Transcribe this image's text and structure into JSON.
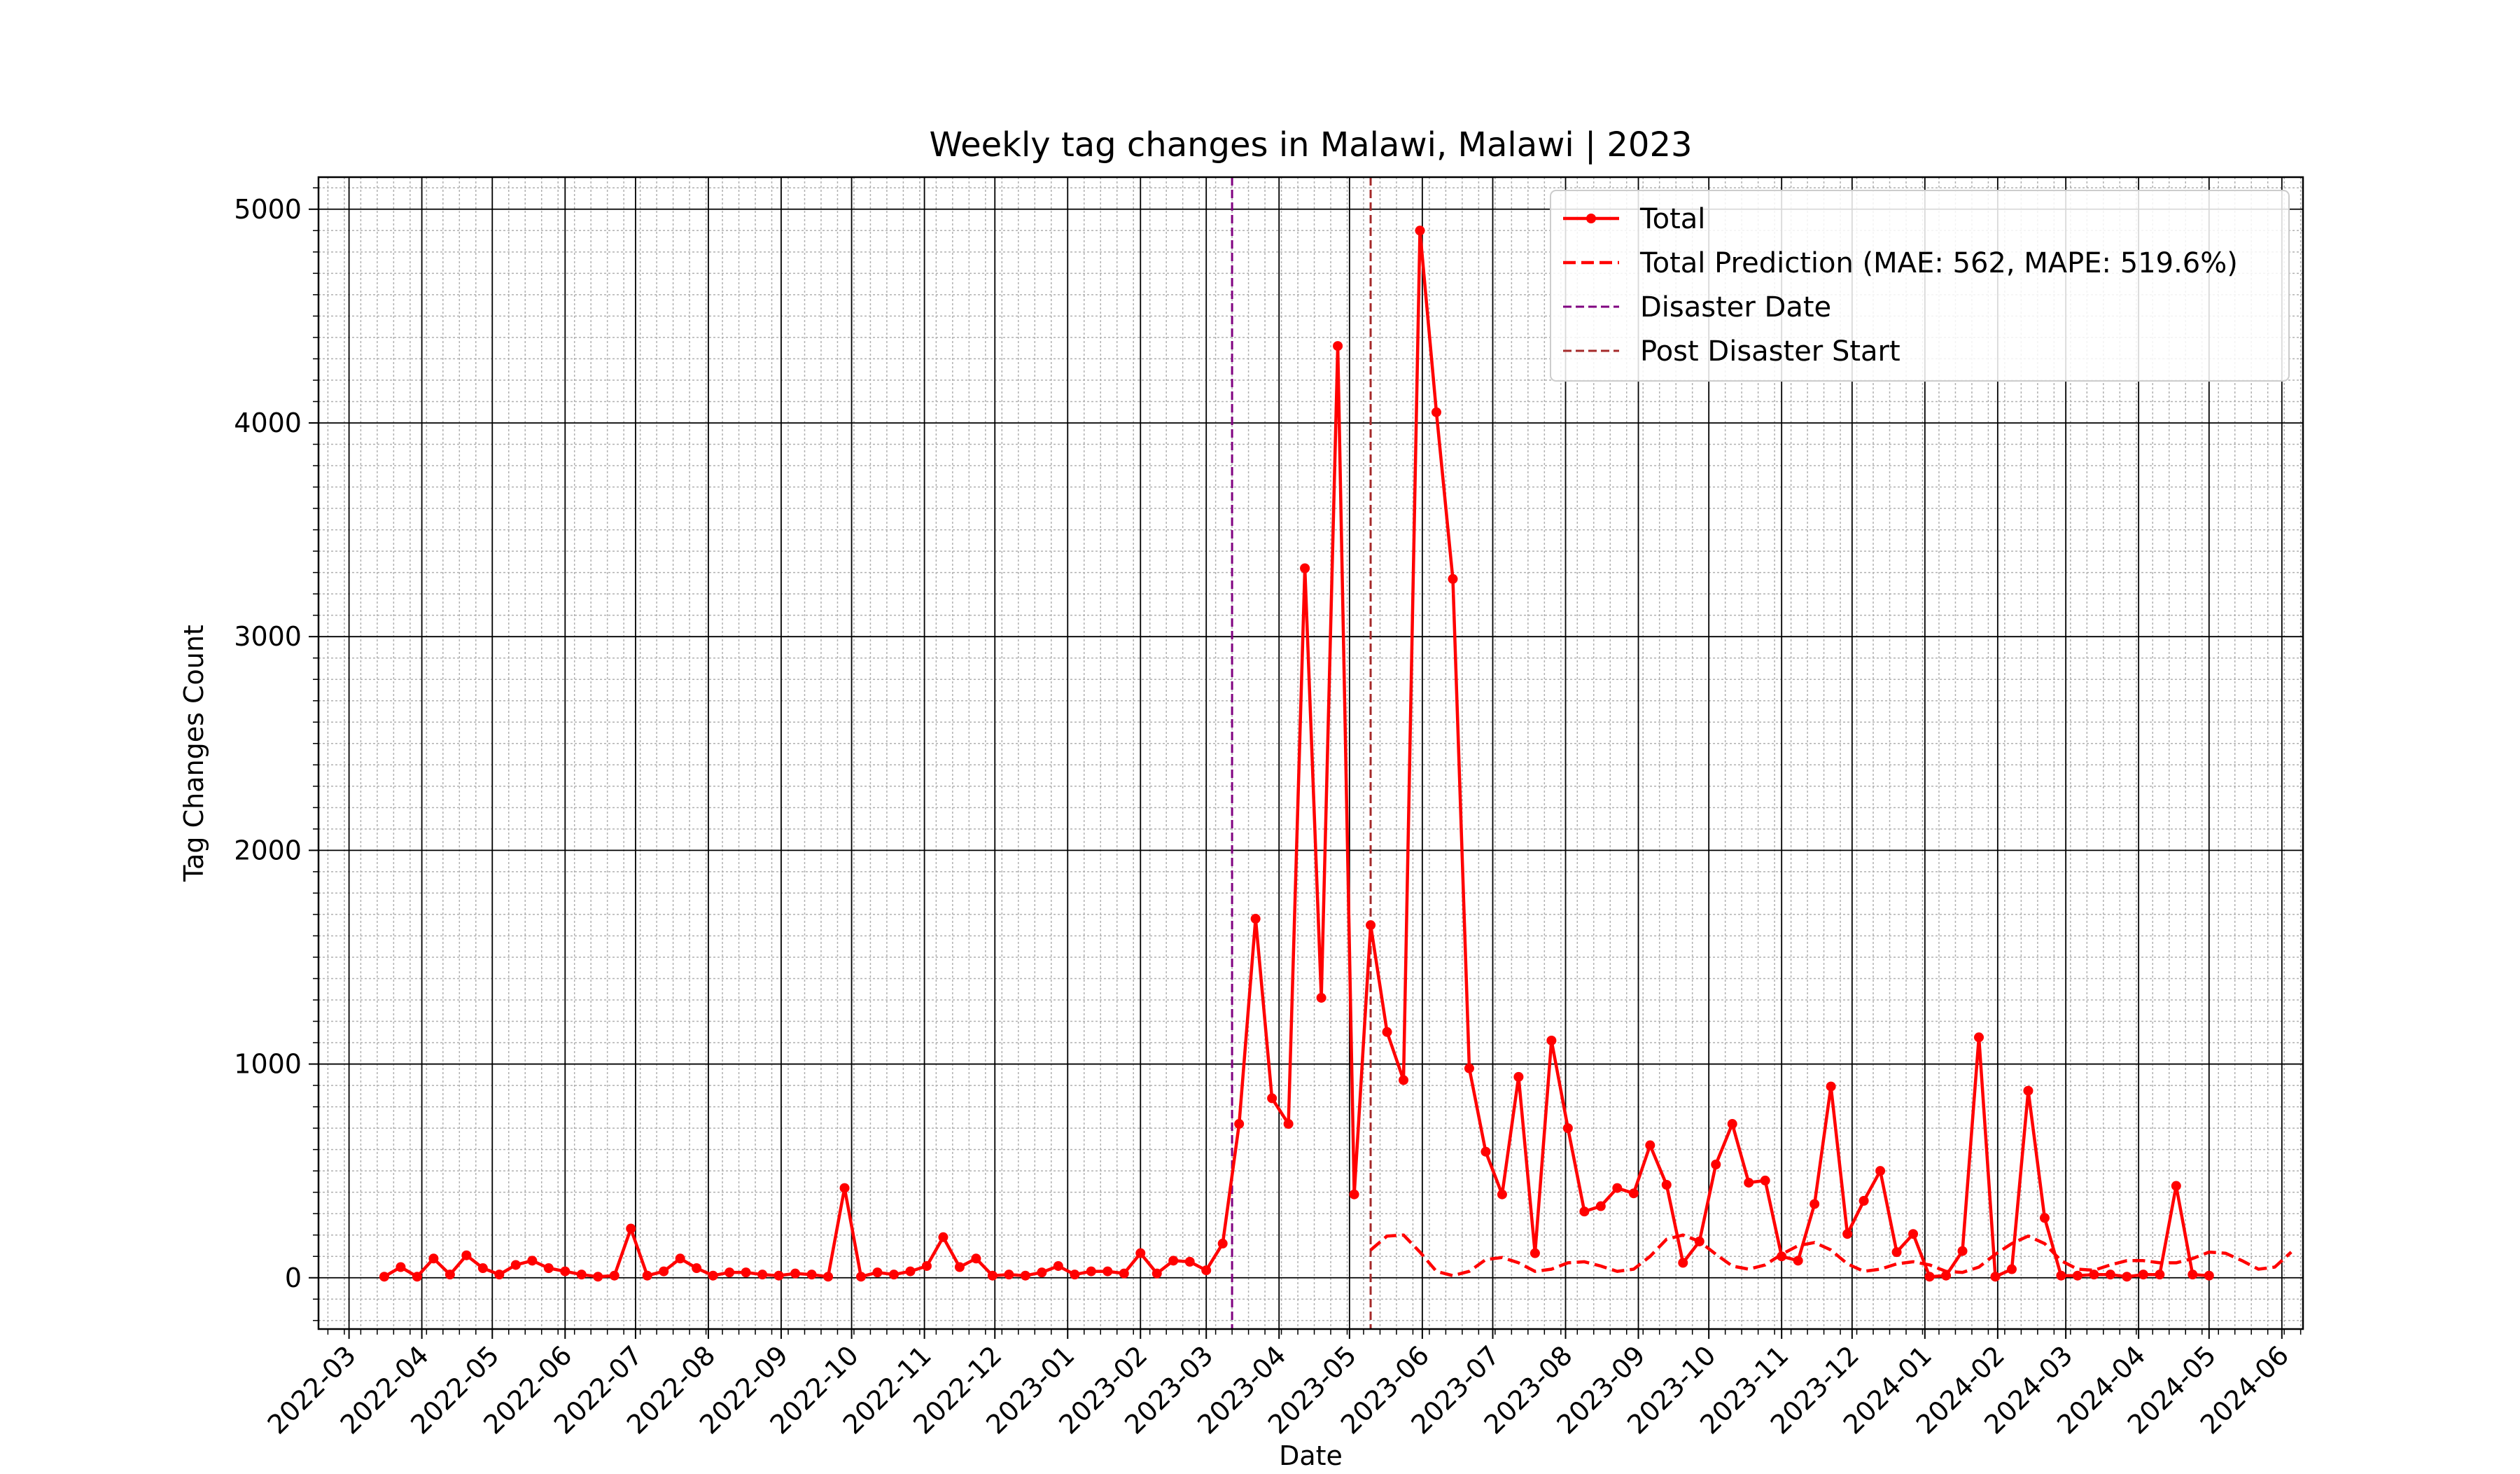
{
  "chart_data": {
    "type": "line",
    "title": "Weekly tag changes in Malawi, Malawi | 2023",
    "xlabel": "Date",
    "ylabel": "Tag Changes Count",
    "ylim": [
      -240,
      5150
    ],
    "xlim": [
      "2022-02-16",
      "2024-06-10"
    ],
    "y_ticks": [
      0,
      1000,
      2000,
      3000,
      4000,
      5000
    ],
    "x_ticks": [
      "2022-03",
      "2022-04",
      "2022-05",
      "2022-06",
      "2022-07",
      "2022-08",
      "2022-09",
      "2022-10",
      "2022-11",
      "2022-12",
      "2023-01",
      "2023-02",
      "2023-03",
      "2023-04",
      "2023-05",
      "2023-06",
      "2023-07",
      "2023-08",
      "2023-09",
      "2023-10",
      "2023-11",
      "2023-12",
      "2024-01",
      "2024-02",
      "2024-03",
      "2024-04",
      "2024-05",
      "2024-06"
    ],
    "grid": true,
    "legend_position": "top-right",
    "colors": {
      "total": "#ff0000",
      "prediction": "#ff0000",
      "disaster": "#800080",
      "post_disaster": "#a52a2a",
      "grid_major": "#000000",
      "grid_minor": "#b0b0b0"
    },
    "vlines": [
      {
        "name": "Disaster Date",
        "x": "2023-03-12",
        "style": "dashed",
        "color": "#800080"
      },
      {
        "name": "Post Disaster Start",
        "x": "2023-05-10",
        "style": "dashed",
        "color": "#a52a2a"
      }
    ],
    "series": [
      {
        "name": "Total",
        "style": "solid-marker",
        "color": "#ff0000",
        "start": "2022-03-16",
        "interval_days": 7,
        "values": [
          5,
          50,
          5,
          90,
          15,
          105,
          45,
          15,
          60,
          80,
          45,
          30,
          15,
          5,
          10,
          230,
          10,
          30,
          90,
          45,
          10,
          25,
          25,
          15,
          10,
          20,
          15,
          5,
          420,
          5,
          25,
          15,
          30,
          55,
          190,
          50,
          90,
          10,
          15,
          10,
          25,
          55,
          15,
          30,
          30,
          20,
          115,
          20,
          80,
          75,
          35,
          160,
          720,
          1680,
          840,
          720,
          3320,
          1310,
          4360,
          390,
          1650,
          1150,
          925,
          4900,
          4050,
          3270,
          980,
          590,
          390,
          940,
          115,
          1110,
          700,
          310,
          335,
          420,
          395,
          620,
          435,
          70,
          170,
          530,
          720,
          445,
          455,
          100,
          80,
          345,
          895,
          205,
          360,
          500,
          120,
          205,
          5,
          10,
          125,
          1125,
          5,
          40,
          875,
          280,
          10,
          10,
          15,
          15,
          5,
          15,
          15,
          430,
          15,
          10
        ]
      },
      {
        "name": "Total Prediction (MAE: 562, MAPE: 519.6%)",
        "style": "dashed",
        "color": "#ff0000",
        "start": "2023-05-10",
        "interval_days": 7,
        "values": [
          130,
          195,
          200,
          120,
          30,
          10,
          30,
          85,
          95,
          70,
          30,
          40,
          70,
          75,
          55,
          30,
          40,
          100,
          180,
          200,
          170,
          110,
          55,
          40,
          60,
          110,
          150,
          165,
          130,
          65,
          30,
          40,
          65,
          75,
          60,
          30,
          25,
          50,
          110,
          160,
          195,
          160,
          80,
          40,
          35,
          60,
          80,
          80,
          70,
          70,
          90,
          120,
          115,
          80,
          40,
          50,
          120
        ]
      }
    ]
  }
}
